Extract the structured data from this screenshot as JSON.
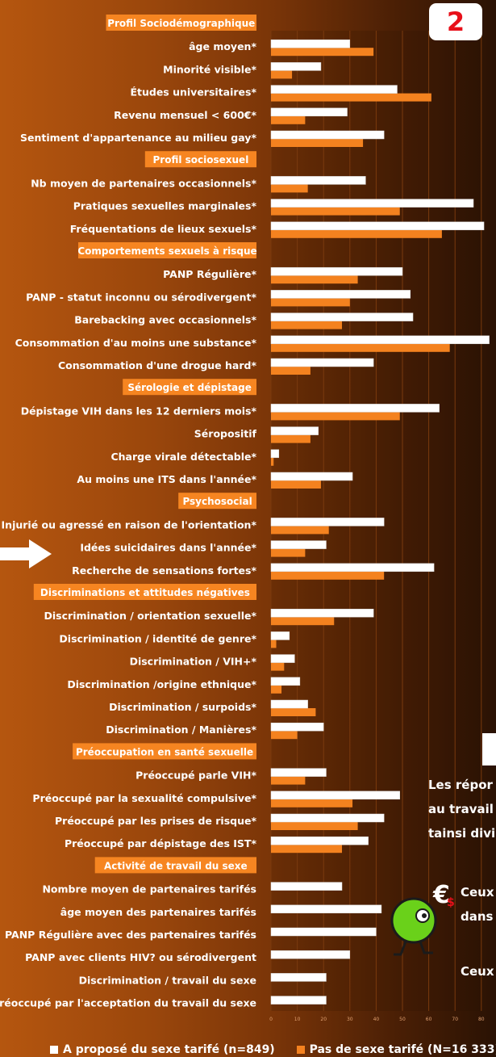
{
  "badge": "2",
  "side_text": {
    "line1": "Les répor",
    "line2": "au travail",
    "line3": "tainsi divi",
    "ceux1": "Ceux",
    "dans": "dans",
    "ceux2": "Ceux"
  },
  "legend": {
    "white": "A proposé du sexe tarifé (n=849)",
    "orange": "Pas de sexe tarifé (N=16 333)"
  },
  "colors": {
    "white": "#ffffff",
    "orange": "#f4821f",
    "header_bg": "#f68521",
    "grid": "#7a3a0e",
    "badge_text": "#e8101a"
  },
  "chart_data": {
    "type": "bar",
    "orientation": "horizontal",
    "xlim": [
      0,
      80
    ],
    "x_ticks": [
      "0",
      "10",
      "20",
      "30",
      "40",
      "50",
      "60",
      "70",
      "80"
    ],
    "series": [
      {
        "name": "A proposé du sexe tarifé (n=849)",
        "color": "#ffffff"
      },
      {
        "name": "Pas de sexe tarifé (N=16 333)",
        "color": "#f4821f"
      }
    ],
    "groups": [
      {
        "title": "Profil Sociodémographique",
        "rows": [
          {
            "label": "âge moyen*",
            "a": 30,
            "b": 39
          },
          {
            "label": "Minorité visible*",
            "a": 19,
            "b": 8
          },
          {
            "label": "Études universitaires*",
            "a": 48,
            "b": 61
          },
          {
            "label": "Revenu mensuel < 600€*",
            "a": 29,
            "b": 13
          },
          {
            "label": "Sentiment d'appartenance au milieu gay*",
            "a": 43,
            "b": 35
          }
        ]
      },
      {
        "title": "Profil sociosexuel",
        "rows": [
          {
            "label": "Nb moyen de partenaires occasionnels*",
            "a": 36,
            "b": 14
          },
          {
            "label": "Pratiques sexuelles marginales*",
            "a": 77,
            "b": 49
          },
          {
            "label": "Fréquentations de lieux sexuels*",
            "a": 81,
            "b": 65
          }
        ]
      },
      {
        "title": "Comportements sexuels à risque",
        "rows": [
          {
            "label": "PANP Régulière*",
            "a": 50,
            "b": 33
          },
          {
            "label": "PANP -  statut inconnu ou sérodivergent*",
            "a": 53,
            "b": 30
          },
          {
            "label": "Barebacking avec occasionnels*",
            "a": 54,
            "b": 27
          },
          {
            "label": "Consommation d'au moins une substance*",
            "a": 83,
            "b": 68
          },
          {
            "label": "Consommation d'une drogue hard*",
            "a": 39,
            "b": 15
          }
        ]
      },
      {
        "title": "Sérologie et dépistage",
        "rows": [
          {
            "label": "Dépistage VIH dans les 12 derniers mois*",
            "a": 64,
            "b": 49
          },
          {
            "label": "Séropositif",
            "a": 18,
            "b": 15
          },
          {
            "label": "Charge virale détectable*",
            "a": 3,
            "b": 1
          },
          {
            "label": "Au moins une ITS dans l'année*",
            "a": 31,
            "b": 19
          }
        ]
      },
      {
        "title": "Psychosocial",
        "rows": [
          {
            "label": "Injurié ou agressé en raison de l'orientation*",
            "a": 43,
            "b": 22
          },
          {
            "label": "Idées suicidaires dans l'année*",
            "a": 21,
            "b": 13
          },
          {
            "label": "Recherche de sensations fortes*",
            "a": 62,
            "b": 43
          }
        ]
      },
      {
        "title": "Discriminations et attitudes négatives",
        "rows": [
          {
            "label": "Discrimination / orientation sexuelle*",
            "a": 39,
            "b": 24
          },
          {
            "label": "Discrimination / identité de genre*",
            "a": 7,
            "b": 2
          },
          {
            "label": "Discrimination / VIH+*",
            "a": 9,
            "b": 5
          },
          {
            "label": "Discrimination /origine ethnique*",
            "a": 11,
            "b": 4
          },
          {
            "label": "Discrimination / surpoids*",
            "a": 14,
            "b": 17
          },
          {
            "label": "Discrimination  / Manières*",
            "a": 20,
            "b": 10
          }
        ]
      },
      {
        "title": "Préoccupation en santé sexuelle",
        "rows": [
          {
            "label": "Préoccupé parle VIH*",
            "a": 21,
            "b": 13
          },
          {
            "label": "Préoccupé par la sexualité compulsive*",
            "a": 49,
            "b": 31
          },
          {
            "label": "Préoccupé par les prises de risque*",
            "a": 43,
            "b": 33
          },
          {
            "label": "Préoccupé par dépistage des IST*",
            "a": 37,
            "b": 27
          }
        ]
      },
      {
        "title": "Activité de travail du sexe",
        "rows": [
          {
            "label": "Nombre moyen de partenaires tarifés",
            "a": 27,
            "b": null
          },
          {
            "label": "âge moyen des partenaires tarifés",
            "a": 42,
            "b": null
          },
          {
            "label": "PANP Régulière avec des partenaires tarifés",
            "a": 40,
            "b": null
          },
          {
            "label": "PANP avec clients HIV? ou sérodivergent",
            "a": 30,
            "b": null
          },
          {
            "label": "Discrimination /  travail du sexe",
            "a": 21,
            "b": null
          },
          {
            "label": "Préoccupé par l'acceptation du travail du sexe",
            "a": 21,
            "b": null
          }
        ]
      }
    ]
  }
}
